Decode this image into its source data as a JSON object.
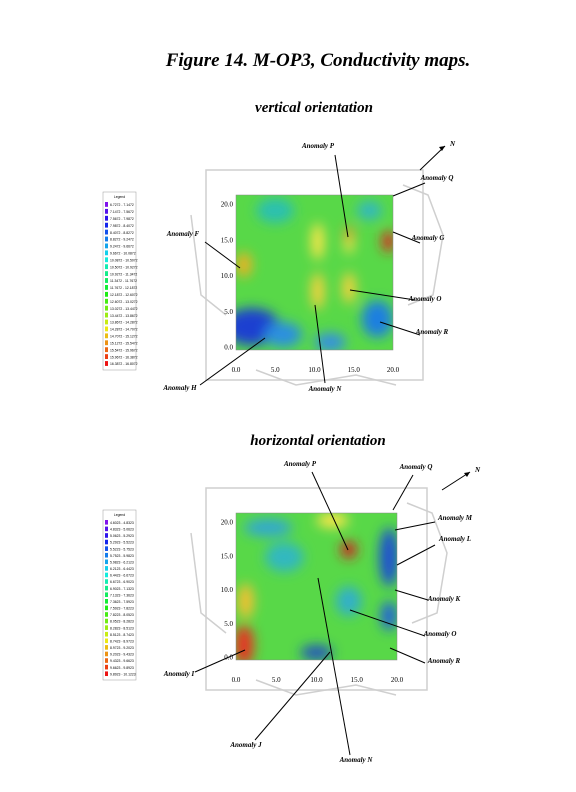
{
  "title": "Figure 14. M-OP3, Conductivity maps.",
  "maps": [
    {
      "subtitle": "vertical orientation",
      "legend": {
        "title": "Legend",
        "entries": [
          "6.7272 - 7.1472",
          "7.1472 - 7.5672",
          "7.5672 - 7.9872",
          "7.9872 - 8.4072",
          "8.4072 - 8.8272",
          "8.8272 - 9.2472",
          "9.2472 - 9.6672",
          "9.6672 - 10.0872",
          "10.0872 - 10.5072",
          "10.5072 - 10.9272",
          "10.9272 - 11.3472",
          "11.3472 - 11.7672",
          "11.7672 - 12.1872",
          "12.1872 - 12.6072",
          "12.6072 - 13.0272",
          "13.0272 - 13.4472",
          "13.4472 - 13.8672",
          "13.8672 - 14.2872",
          "14.2872 - 14.7072",
          "14.7072 - 15.1272",
          "15.1272 - 15.5472",
          "15.5472 - 15.9672",
          "15.9672 - 16.3872",
          "16.3872 - 16.8072"
        ]
      },
      "x_ticks": [
        "0.0",
        "5.0",
        "10.0",
        "15.0",
        "20.0"
      ],
      "y_ticks": [
        "0.0",
        "5.0",
        "10.0",
        "15.0",
        "20.0"
      ],
      "north": "N",
      "anomalies": [
        "Anomaly P",
        "Anomaly Q",
        "Anomaly F",
        "Anomaly G",
        "Anomaly O",
        "Anomaly R",
        "Anomaly H",
        "Anomaly N"
      ]
    },
    {
      "subtitle": "horizontal orientation",
      "legend": {
        "title": "Legend",
        "entries": [
          "4.6023 - 4.8323",
          "4.8323 - 5.0623",
          "5.0623 - 5.2923",
          "5.2923 - 5.5223",
          "5.5223 - 5.7523",
          "5.7523 - 5.9823",
          "5.9823 - 6.2123",
          "6.2123 - 6.4423",
          "6.4423 - 6.6723",
          "6.6723 - 6.9023",
          "6.9023 - 7.1323",
          "7.1323 - 7.3623",
          "7.3623 - 7.5923",
          "7.5923 - 7.8223",
          "7.8223 - 8.0523",
          "8.0523 - 8.2823",
          "8.2823 - 8.5123",
          "8.5123 - 8.7423",
          "8.7423 - 8.9723",
          "8.9723 - 9.2023",
          "9.2023 - 9.4323",
          "9.4323 - 9.6623",
          "9.6623 - 9.8923",
          "9.8923 - 10.1223"
        ]
      },
      "x_ticks": [
        "0.0",
        "5.0",
        "10.0",
        "15.0",
        "20.0"
      ],
      "y_ticks": [
        "0.0",
        "5.0",
        "10.0",
        "15.0",
        "20.0"
      ],
      "north": "N",
      "anomalies": [
        "Anomaly P",
        "Anomaly Q",
        "Anomaly M",
        "Anomaly L",
        "Anomaly K",
        "Anomaly O",
        "Anomaly R",
        "Anomaly I",
        "Anomaly J",
        "Anomaly N"
      ]
    }
  ]
}
